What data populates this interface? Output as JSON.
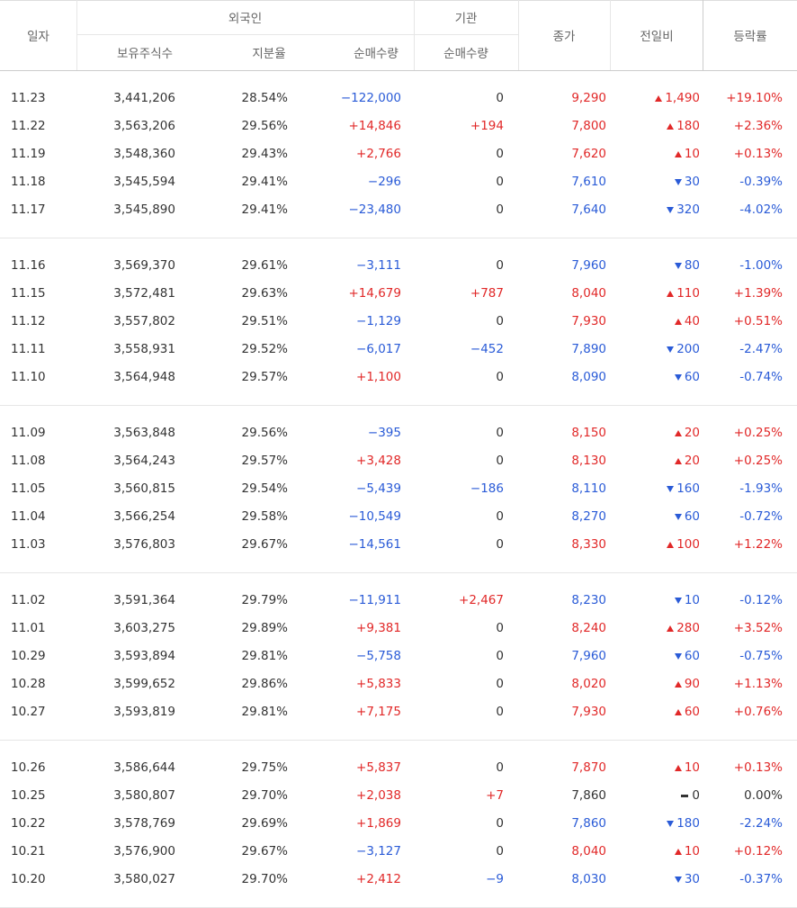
{
  "header": {
    "date": "일자",
    "foreign": "외국인",
    "institution": "기관",
    "close": "종가",
    "change": "전일비",
    "rate": "등락률",
    "foreign_holdings": "보유주식수",
    "foreign_ratio": "지분율",
    "foreign_net": "순매수량",
    "institution_net": "순매수량"
  },
  "table": {
    "groups": [
      [
        [
          "11.23",
          "3,441,206",
          "28.54%",
          "−122,000",
          "0",
          "9,290",
          "1,490",
          "+19.10%"
        ],
        [
          "11.22",
          "3,563,206",
          "29.56%",
          "+14,846",
          "+194",
          "7,800",
          "180",
          "+2.36%"
        ],
        [
          "11.19",
          "3,548,360",
          "29.43%",
          "+2,766",
          "0",
          "7,620",
          "10",
          "+0.13%"
        ],
        [
          "11.18",
          "3,545,594",
          "29.41%",
          "−296",
          "0",
          "7,610",
          "30",
          "-0.39%"
        ],
        [
          "11.17",
          "3,545,890",
          "29.41%",
          "−23,480",
          "0",
          "7,640",
          "320",
          "-4.02%"
        ]
      ],
      [
        [
          "11.16",
          "3,569,370",
          "29.61%",
          "−3,111",
          "0",
          "7,960",
          "80",
          "-1.00%"
        ],
        [
          "11.15",
          "3,572,481",
          "29.63%",
          "+14,679",
          "+787",
          "8,040",
          "110",
          "+1.39%"
        ],
        [
          "11.12",
          "3,557,802",
          "29.51%",
          "−1,129",
          "0",
          "7,930",
          "40",
          "+0.51%"
        ],
        [
          "11.11",
          "3,558,931",
          "29.52%",
          "−6,017",
          "−452",
          "7,890",
          "200",
          "-2.47%"
        ],
        [
          "11.10",
          "3,564,948",
          "29.57%",
          "+1,100",
          "0",
          "8,090",
          "60",
          "-0.74%"
        ]
      ],
      [
        [
          "11.09",
          "3,563,848",
          "29.56%",
          "−395",
          "0",
          "8,150",
          "20",
          "+0.25%"
        ],
        [
          "11.08",
          "3,564,243",
          "29.57%",
          "+3,428",
          "0",
          "8,130",
          "20",
          "+0.25%"
        ],
        [
          "11.05",
          "3,560,815",
          "29.54%",
          "−5,439",
          "−186",
          "8,110",
          "160",
          "-1.93%"
        ],
        [
          "11.04",
          "3,566,254",
          "29.58%",
          "−10,549",
          "0",
          "8,270",
          "60",
          "-0.72%"
        ],
        [
          "11.03",
          "3,576,803",
          "29.67%",
          "−14,561",
          "0",
          "8,330",
          "100",
          "+1.22%"
        ]
      ],
      [
        [
          "11.02",
          "3,591,364",
          "29.79%",
          "−11,911",
          "+2,467",
          "8,230",
          "10",
          "-0.12%"
        ],
        [
          "11.01",
          "3,603,275",
          "29.89%",
          "+9,381",
          "0",
          "8,240",
          "280",
          "+3.52%"
        ],
        [
          "10.29",
          "3,593,894",
          "29.81%",
          "−5,758",
          "0",
          "7,960",
          "60",
          "-0.75%"
        ],
        [
          "10.28",
          "3,599,652",
          "29.86%",
          "+5,833",
          "0",
          "8,020",
          "90",
          "+1.13%"
        ],
        [
          "10.27",
          "3,593,819",
          "29.81%",
          "+7,175",
          "0",
          "7,930",
          "60",
          "+0.76%"
        ]
      ],
      [
        [
          "10.26",
          "3,586,644",
          "29.75%",
          "+5,837",
          "0",
          "7,870",
          "10",
          "+0.13%"
        ],
        [
          "10.25",
          "3,580,807",
          "29.70%",
          "+2,038",
          "+7",
          "7,860",
          "0",
          "0.00%"
        ],
        [
          "10.22",
          "3,578,769",
          "29.69%",
          "+1,869",
          "0",
          "7,860",
          "180",
          "-2.24%"
        ],
        [
          "10.21",
          "3,576,900",
          "29.67%",
          "−3,127",
          "0",
          "8,040",
          "10",
          "+0.12%"
        ],
        [
          "10.20",
          "3,580,027",
          "29.70%",
          "+2,412",
          "−9",
          "8,030",
          "30",
          "-0.37%"
        ]
      ]
    ]
  }
}
